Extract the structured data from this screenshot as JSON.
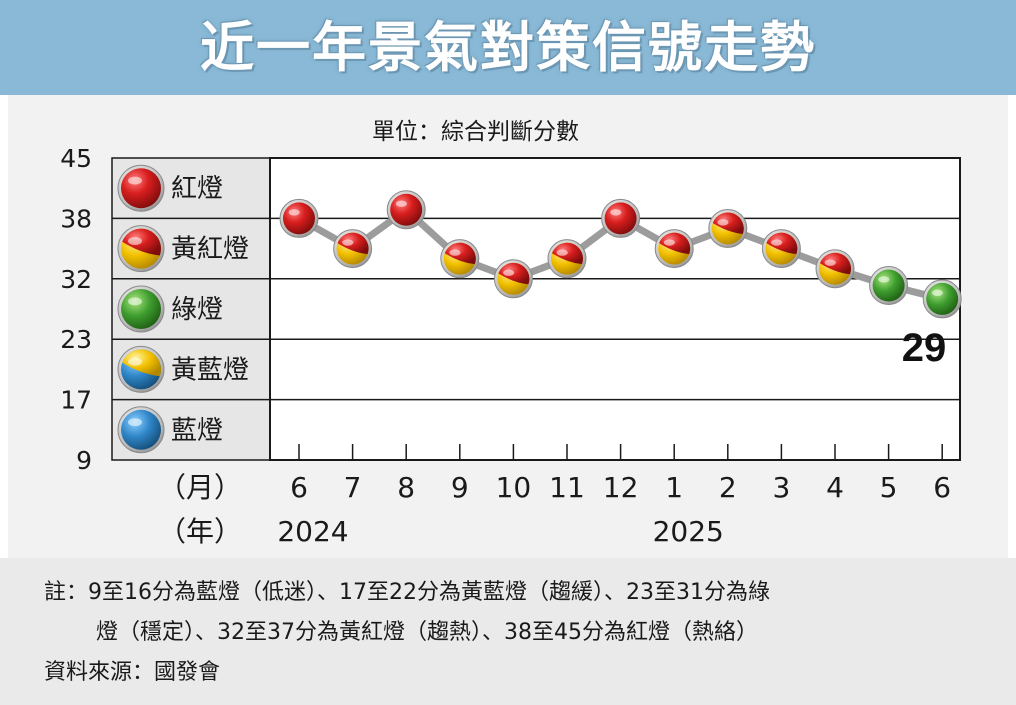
{
  "header": {
    "title": "近一年景氣對策信號走勢"
  },
  "unit_label": "單位：綜合判斷分數",
  "legend": [
    {
      "label": "紅燈",
      "color": "red"
    },
    {
      "label": "黃紅燈",
      "color": "yellow-red"
    },
    {
      "label": "綠燈",
      "color": "green"
    },
    {
      "label": "黃藍燈",
      "color": "yellow-blue"
    },
    {
      "label": "藍燈",
      "color": "blue"
    }
  ],
  "colors": {
    "red": "#d81e1e",
    "yellow": "#f2c100",
    "green": "#3f9e2f",
    "blue": "#2f86c8",
    "line": "#9c9c9c",
    "header": "#89b9d6"
  },
  "chart_data": {
    "type": "line",
    "y_ticks": [
      "45",
      "38",
      "32",
      "23",
      "17",
      "9"
    ],
    "month_axis_label": "（月）",
    "year_axis_label": "（年）",
    "months": [
      "6",
      "7",
      "8",
      "9",
      "10",
      "11",
      "12",
      "1",
      "2",
      "3",
      "4",
      "5",
      "6"
    ],
    "years": [
      {
        "label": "2024",
        "month_index": 0
      },
      {
        "label": "2025",
        "month_index": 7
      }
    ],
    "series": [
      {
        "values": [
          38,
          35,
          39,
          34,
          32,
          34,
          38,
          35,
          37,
          35,
          33,
          31,
          29
        ],
        "signals": [
          "red",
          "yellow-red",
          "red",
          "yellow-red",
          "yellow-red",
          "yellow-red",
          "red",
          "yellow-red",
          "yellow-red",
          "yellow-red",
          "yellow-red",
          "green",
          "green"
        ]
      }
    ],
    "highlight_label": "29",
    "grid": true
  },
  "notes": {
    "line1": "註：9至16分為藍燈（低迷）、17至22分為黃藍燈（趨緩）、23至31分為綠",
    "line2": "燈（穩定）、32至37分為黃紅燈（趨熱）、38至45分為紅燈（熱絡）",
    "source": "資料來源：國發會"
  }
}
